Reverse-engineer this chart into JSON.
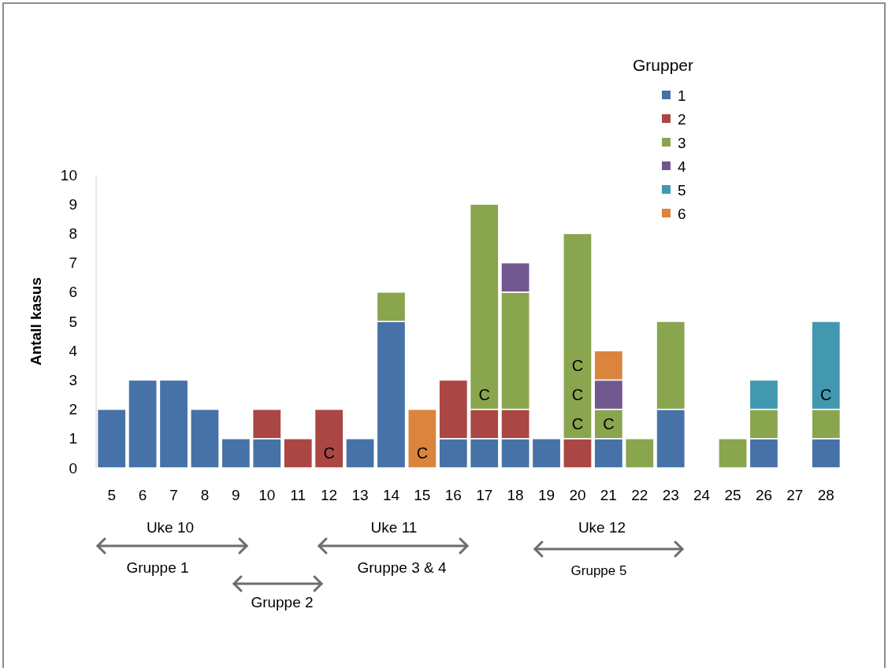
{
  "chart_data": {
    "type": "bar",
    "stacked": true,
    "ylabel": "Antall kasus",
    "legend_title": "Grupper",
    "legend": "top right",
    "grid": false,
    "categories": [
      "5",
      "6",
      "7",
      "8",
      "9",
      "10",
      "11",
      "12",
      "13",
      "14",
      "15",
      "16",
      "17",
      "18",
      "19",
      "20",
      "21",
      "22",
      "23",
      "24",
      "25",
      "26",
      "27",
      "28"
    ],
    "ylim": [
      0,
      10
    ],
    "yticks": [
      0,
      1,
      2,
      3,
      4,
      5,
      6,
      7,
      8,
      9,
      10
    ],
    "series": [
      {
        "name": "1",
        "color": "#4672a8",
        "values": [
          2,
          3,
          3,
          2,
          1,
          1,
          0,
          0,
          1,
          5,
          0,
          1,
          1,
          1,
          1,
          0,
          1,
          0,
          2,
          0,
          0,
          1,
          0,
          1
        ]
      },
      {
        "name": "2",
        "color": "#aa4644",
        "values": [
          0,
          0,
          0,
          0,
          0,
          1,
          1,
          2,
          0,
          0,
          0,
          2,
          1,
          1,
          0,
          1,
          0,
          0,
          0,
          0,
          0,
          0,
          0,
          0
        ]
      },
      {
        "name": "3",
        "color": "#89a54e",
        "values": [
          0,
          0,
          0,
          0,
          0,
          0,
          0,
          0,
          0,
          1,
          0,
          0,
          7,
          4,
          0,
          7,
          1,
          1,
          3,
          0,
          1,
          1,
          0,
          1
        ]
      },
      {
        "name": "4",
        "color": "#71588f",
        "values": [
          0,
          0,
          0,
          0,
          0,
          0,
          0,
          0,
          0,
          0,
          0,
          0,
          0,
          1,
          0,
          0,
          1,
          0,
          0,
          0,
          0,
          0,
          0,
          0
        ]
      },
      {
        "name": "5",
        "color": "#4298af",
        "values": [
          0,
          0,
          0,
          0,
          0,
          0,
          0,
          0,
          0,
          0,
          0,
          0,
          0,
          0,
          0,
          0,
          0,
          0,
          0,
          0,
          0,
          1,
          0,
          3
        ]
      },
      {
        "name": "6",
        "color": "#db843d",
        "values": [
          0,
          0,
          0,
          0,
          0,
          0,
          0,
          0,
          0,
          0,
          2,
          0,
          0,
          0,
          0,
          0,
          1,
          0,
          0,
          0,
          0,
          0,
          0,
          0
        ]
      }
    ],
    "annotations": [
      "Uke 10",
      "Uke 11",
      "Uke 12",
      "Gruppe 1",
      "Gruppe 3 & 4",
      "Gruppe 5",
      "Gruppe 2",
      "C",
      "C",
      "C",
      "C",
      "C",
      "C",
      "C",
      "C"
    ]
  }
}
